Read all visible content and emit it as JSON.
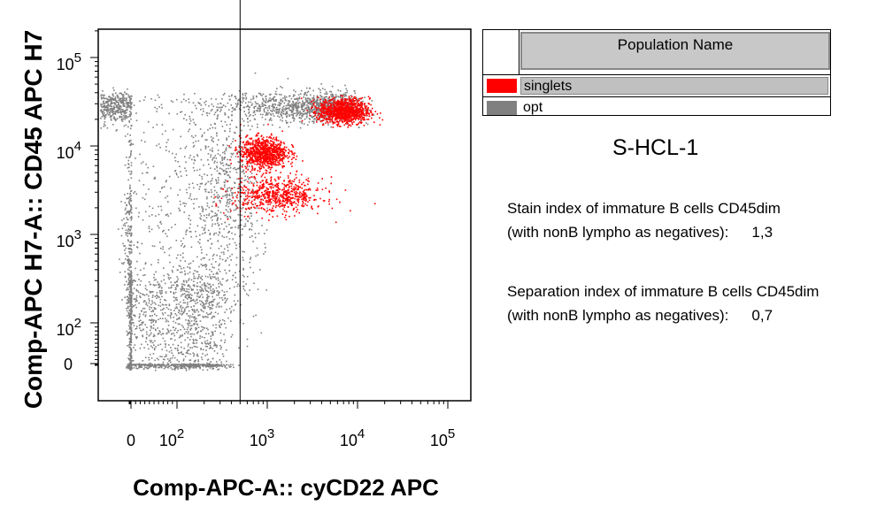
{
  "chart_data": {
    "type": "scatter",
    "title": "",
    "xlabel": "Comp-APC-A:: cyCD22 APC",
    "ylabel": "Comp-APC H7-A:: CD45 APC H7",
    "x_scale": "biexponential",
    "y_scale": "biexponential",
    "x_ticks": [
      {
        "base": "0",
        "exp": ""
      },
      {
        "base": "10",
        "exp": "2"
      },
      {
        "base": "10",
        "exp": "3"
      },
      {
        "base": "10",
        "exp": "4"
      },
      {
        "base": "10",
        "exp": "5"
      }
    ],
    "y_ticks": [
      {
        "base": "0",
        "exp": ""
      },
      {
        "base": "10",
        "exp": "2"
      },
      {
        "base": "10",
        "exp": "3"
      },
      {
        "base": "10",
        "exp": "4"
      },
      {
        "base": "10",
        "exp": "5"
      }
    ],
    "gate_x": 500,
    "series": [
      {
        "name": "opt",
        "color": "#808080",
        "clusters": [
          {
            "center": [
              20,
              28000
            ],
            "spread": [
              4500,
              0.09
            ],
            "weight": 0.46
          },
          {
            "center": [
              80,
              80
            ],
            "spread": [
              120,
              0.3
            ],
            "weight": 0.32
          },
          {
            "center": [
              250,
              5000
            ],
            "spread": [
              200,
              0.35
            ],
            "weight": 0.1
          },
          {
            "center": [
              150,
              800
            ],
            "spread": [
              300,
              0.45
            ],
            "weight": 0.12
          }
        ]
      },
      {
        "name": "singlets",
        "color": "#ff0000",
        "clusters": [
          {
            "center": [
              7000,
              25000
            ],
            "spread": [
              0.14,
              0.07
            ],
            "weight": 0.4
          },
          {
            "center": [
              900,
              8500
            ],
            "spread": [
              0.13,
              0.09
            ],
            "weight": 0.35
          },
          {
            "center": [
              1300,
              2800
            ],
            "spread": [
              0.25,
              0.1
            ],
            "weight": 0.25
          }
        ]
      }
    ],
    "legend": {
      "position": "right",
      "header": "Population Name"
    }
  },
  "legend": {
    "header": "Population Name",
    "items": [
      {
        "label": "singlets",
        "color": "#ff0000"
      },
      {
        "label": "opt",
        "color": "#808080"
      }
    ]
  },
  "sample_name": "S-HCL-1",
  "stats": [
    {
      "line1": "Stain index of immature B cells CD45dim",
      "line2": "(with nonB lympho as negatives):",
      "value": "1,3"
    },
    {
      "line1": "Separation index of immature B cells CD45dim",
      "line2": "(with nonB lympho as negatives):",
      "value": "0,7"
    }
  ]
}
